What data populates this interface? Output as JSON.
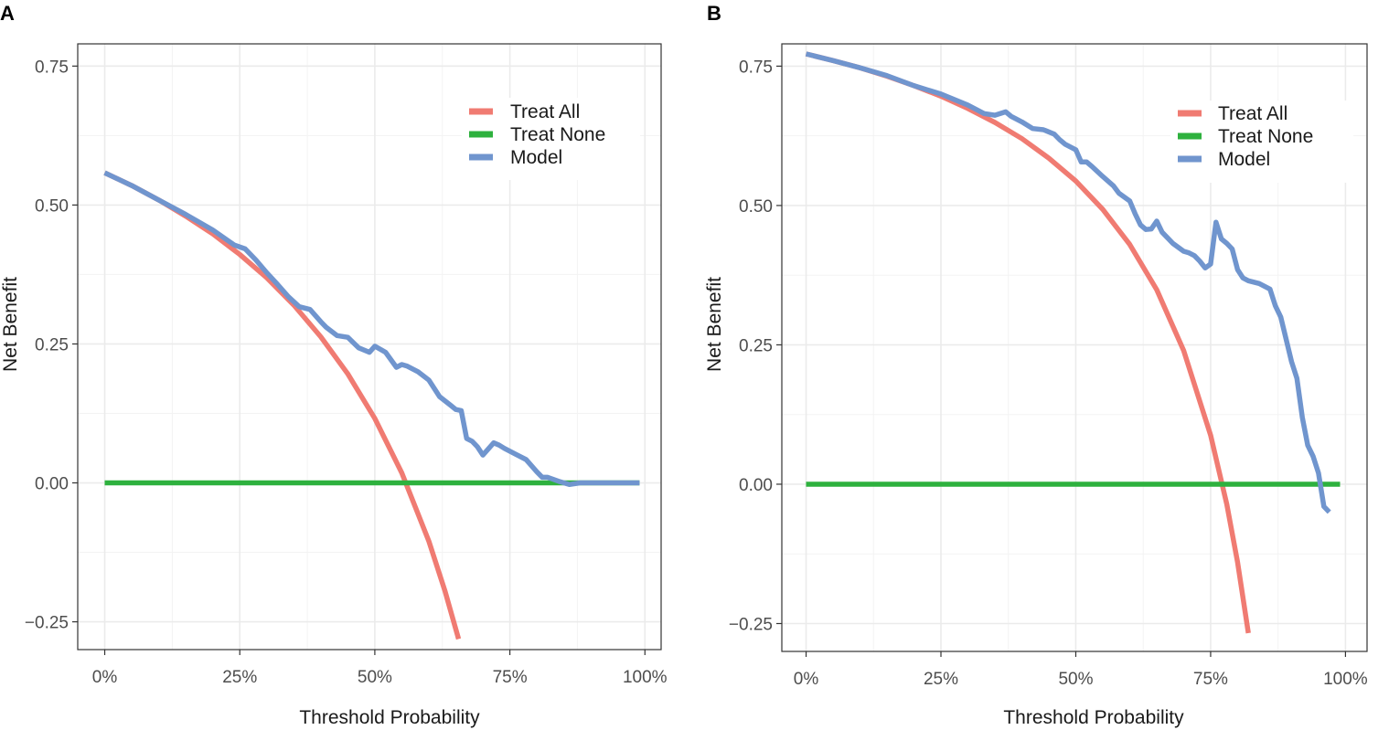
{
  "chart_data": [
    {
      "panel": "A",
      "type": "line",
      "xlabel": "Threshold Probability",
      "ylabel": "Net Benefit",
      "xlim": [
        -0.05,
        1.03
      ],
      "ylim": [
        -0.3,
        0.79
      ],
      "x_ticks": [
        0,
        0.25,
        0.5,
        0.75,
        1.0
      ],
      "x_tick_labels": [
        "0%",
        "25%",
        "50%",
        "75%",
        "100%"
      ],
      "y_ticks": [
        -0.25,
        0,
        0.25,
        0.5,
        0.75
      ],
      "y_tick_labels": [
        "−0.25",
        "0.00",
        "0.25",
        "0.50",
        "0.75"
      ],
      "legend": {
        "position": "top-right",
        "entries": [
          "Treat All",
          "Treat None",
          "Model"
        ]
      },
      "series": [
        {
          "name": "Treat All",
          "color": "#F07B72",
          "prevalence": 0.558,
          "x": [
            0,
            0.05,
            0.1,
            0.15,
            0.2,
            0.25,
            0.3,
            0.35,
            0.4,
            0.45,
            0.5,
            0.55,
            0.6,
            0.63,
            0.655
          ],
          "values": [
            0.558,
            0.535,
            0.509,
            0.48,
            0.448,
            0.411,
            0.369,
            0.32,
            0.263,
            0.196,
            0.116,
            0.018,
            -0.105,
            -0.195,
            -0.281
          ]
        },
        {
          "name": "Treat None",
          "color": "#2EB13E",
          "x": [
            0,
            0.99
          ],
          "values": [
            0,
            0
          ]
        },
        {
          "name": "Model",
          "color": "#7095CE",
          "x": [
            0,
            0.05,
            0.1,
            0.15,
            0.2,
            0.24,
            0.26,
            0.28,
            0.3,
            0.32,
            0.34,
            0.36,
            0.38,
            0.4,
            0.41,
            0.43,
            0.45,
            0.47,
            0.49,
            0.5,
            0.52,
            0.54,
            0.55,
            0.56,
            0.58,
            0.6,
            0.62,
            0.64,
            0.65,
            0.66,
            0.67,
            0.68,
            0.69,
            0.7,
            0.72,
            0.73,
            0.74,
            0.76,
            0.78,
            0.8,
            0.81,
            0.82,
            0.84,
            0.86,
            0.88,
            0.9,
            0.95,
            0.99
          ],
          "values": [
            0.558,
            0.535,
            0.509,
            0.483,
            0.455,
            0.428,
            0.421,
            0.401,
            0.378,
            0.357,
            0.335,
            0.317,
            0.312,
            0.29,
            0.28,
            0.265,
            0.262,
            0.243,
            0.235,
            0.246,
            0.235,
            0.208,
            0.213,
            0.21,
            0.2,
            0.185,
            0.155,
            0.14,
            0.132,
            0.13,
            0.08,
            0.075,
            0.065,
            0.05,
            0.072,
            0.068,
            0.062,
            0.052,
            0.042,
            0.02,
            0.01,
            0.01,
            0.003,
            -0.003,
            0,
            0,
            0,
            0
          ]
        }
      ]
    },
    {
      "panel": "B",
      "type": "line",
      "xlabel": "Threshold Probability",
      "ylabel": "Net Benefit",
      "xlim": [
        -0.045,
        1.04
      ],
      "ylim": [
        -0.3,
        0.79
      ],
      "x_ticks": [
        0,
        0.25,
        0.5,
        0.75,
        1.0
      ],
      "x_tick_labels": [
        "0%",
        "25%",
        "50%",
        "75%",
        "100%"
      ],
      "y_ticks": [
        -0.25,
        0,
        0.25,
        0.5,
        0.75
      ],
      "y_tick_labels": [
        "−0.25",
        "0.00",
        "0.25",
        "0.50",
        "0.75"
      ],
      "legend": {
        "position": "top-right",
        "entries": [
          "Treat All",
          "Treat None",
          "Model"
        ]
      },
      "series": [
        {
          "name": "Treat All",
          "color": "#F07B72",
          "prevalence": 0.772,
          "x": [
            0,
            0.05,
            0.1,
            0.15,
            0.2,
            0.25,
            0.3,
            0.35,
            0.4,
            0.45,
            0.5,
            0.55,
            0.6,
            0.65,
            0.7,
            0.75,
            0.78,
            0.8,
            0.82
          ],
          "values": [
            0.772,
            0.76,
            0.747,
            0.732,
            0.715,
            0.696,
            0.674,
            0.649,
            0.62,
            0.585,
            0.544,
            0.493,
            0.43,
            0.349,
            0.24,
            0.088,
            -0.036,
            -0.14,
            -0.267
          ]
        },
        {
          "name": "Treat None",
          "color": "#2EB13E",
          "x": [
            0,
            0.99
          ],
          "values": [
            0,
            0
          ]
        },
        {
          "name": "Model",
          "color": "#7095CE",
          "x": [
            0,
            0.05,
            0.1,
            0.15,
            0.2,
            0.25,
            0.3,
            0.33,
            0.35,
            0.37,
            0.38,
            0.4,
            0.42,
            0.44,
            0.46,
            0.47,
            0.48,
            0.5,
            0.51,
            0.52,
            0.53,
            0.55,
            0.57,
            0.58,
            0.6,
            0.61,
            0.62,
            0.63,
            0.64,
            0.65,
            0.66,
            0.67,
            0.68,
            0.7,
            0.71,
            0.72,
            0.73,
            0.74,
            0.75,
            0.76,
            0.77,
            0.78,
            0.79,
            0.8,
            0.81,
            0.82,
            0.84,
            0.86,
            0.87,
            0.88,
            0.89,
            0.9,
            0.91,
            0.92,
            0.93,
            0.94,
            0.95,
            0.96,
            0.97
          ],
          "values": [
            0.772,
            0.76,
            0.747,
            0.733,
            0.715,
            0.7,
            0.68,
            0.665,
            0.662,
            0.668,
            0.66,
            0.65,
            0.638,
            0.636,
            0.628,
            0.618,
            0.61,
            0.6,
            0.578,
            0.578,
            0.57,
            0.552,
            0.535,
            0.522,
            0.508,
            0.485,
            0.465,
            0.457,
            0.458,
            0.472,
            0.452,
            0.442,
            0.432,
            0.418,
            0.415,
            0.41,
            0.4,
            0.388,
            0.395,
            0.47,
            0.44,
            0.432,
            0.422,
            0.385,
            0.37,
            0.365,
            0.36,
            0.35,
            0.32,
            0.3,
            0.26,
            0.22,
            0.19,
            0.12,
            0.07,
            0.05,
            0.02,
            -0.04,
            -0.05
          ]
        }
      ]
    }
  ]
}
